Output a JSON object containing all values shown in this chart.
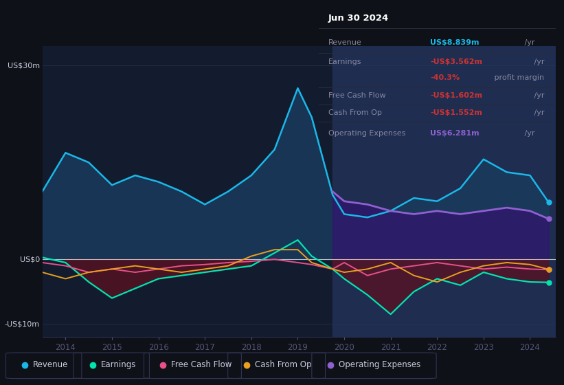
{
  "bg_color": "#0e1117",
  "plot_bg": "#131c2e",
  "highlight_bg": "#1a2744",
  "years": [
    2013.5,
    2014.0,
    2014.5,
    2015.0,
    2015.5,
    2016.0,
    2016.5,
    2017.0,
    2017.5,
    2018.0,
    2018.5,
    2019.0,
    2019.3,
    2019.75,
    2020.0,
    2020.5,
    2021.0,
    2021.5,
    2022.0,
    2022.5,
    2023.0,
    2023.5,
    2024.0,
    2024.4
  ],
  "revenue": [
    10.5,
    16.5,
    15.0,
    11.5,
    13.0,
    12.0,
    10.5,
    8.5,
    10.5,
    13.0,
    17.0,
    26.5,
    22.0,
    10.0,
    7.0,
    6.5,
    7.5,
    9.5,
    9.0,
    11.0,
    15.5,
    13.5,
    13.0,
    8.839
  ],
  "earnings": [
    0.3,
    -0.5,
    -3.5,
    -6.0,
    -4.5,
    -3.0,
    -2.5,
    -2.0,
    -1.5,
    -1.0,
    1.0,
    3.0,
    0.5,
    -1.5,
    -3.0,
    -5.5,
    -8.5,
    -5.0,
    -3.0,
    -4.0,
    -2.0,
    -3.0,
    -3.5,
    -3.562
  ],
  "free_cash_flow": [
    -0.5,
    -1.0,
    -2.0,
    -1.5,
    -2.0,
    -1.5,
    -1.0,
    -0.8,
    -0.5,
    -0.3,
    0.0,
    -0.5,
    -0.8,
    -1.5,
    -0.5,
    -2.5,
    -1.5,
    -1.0,
    -0.5,
    -1.0,
    -1.5,
    -1.2,
    -1.5,
    -1.602
  ],
  "cash_from_op": [
    -2.0,
    -3.0,
    -2.0,
    -1.5,
    -1.0,
    -1.5,
    -2.0,
    -1.5,
    -1.0,
    0.5,
    1.5,
    1.5,
    -0.5,
    -1.5,
    -2.0,
    -1.5,
    -0.5,
    -2.5,
    -3.5,
    -2.0,
    -1.0,
    -0.5,
    -0.8,
    -1.552
  ],
  "op_expenses_years": [
    2019.75,
    2020.0,
    2020.5,
    2021.0,
    2021.5,
    2022.0,
    2022.5,
    2023.0,
    2023.5,
    2024.0,
    2024.4
  ],
  "op_expenses_vals": [
    10.5,
    9.0,
    8.5,
    7.5,
    7.0,
    7.5,
    7.0,
    7.5,
    8.0,
    7.5,
    6.281
  ],
  "highlight_start": 2019.75,
  "highlight_end": 2024.55,
  "xlim": [
    2013.5,
    2024.55
  ],
  "ylim": [
    -12,
    33
  ],
  "yticks": [
    -10,
    0,
    30
  ],
  "ytick_labels": [
    "-US$10m",
    "US$0",
    "US$30m"
  ],
  "xticks": [
    2014,
    2015,
    2016,
    2017,
    2018,
    2019,
    2020,
    2021,
    2022,
    2023,
    2024
  ],
  "revenue_color": "#1ab8e8",
  "earnings_color": "#00e5b0",
  "fcf_color": "#e8508a",
  "cashop_color": "#e8a020",
  "opex_color": "#9060d0",
  "revenue_fill": "#1a3a5c",
  "earnings_fill_neg": "#5a1020",
  "opex_fill": "#2d1a6a",
  "info_box": {
    "title": "Jun 30 2024",
    "rows": [
      {
        "label": "Revenue",
        "value": "US$8.839m",
        "value_color": "#1ab8e8",
        "suffix": " /yr"
      },
      {
        "label": "Earnings",
        "value": "-US$3.562m",
        "value_color": "#cc3333",
        "suffix": " /yr"
      },
      {
        "label": null,
        "value": "-40.3%",
        "value_color": "#cc3333",
        "suffix": " profit margin"
      },
      {
        "label": "Free Cash Flow",
        "value": "-US$1.602m",
        "value_color": "#cc3333",
        "suffix": " /yr"
      },
      {
        "label": "Cash From Op",
        "value": "-US$1.552m",
        "value_color": "#cc3333",
        "suffix": " /yr"
      },
      {
        "label": "Operating Expenses",
        "value": "US$6.281m",
        "value_color": "#9060d0",
        "suffix": " /yr"
      }
    ]
  },
  "legend_items": [
    {
      "label": "Revenue",
      "color": "#1ab8e8"
    },
    {
      "label": "Earnings",
      "color": "#00e5b0"
    },
    {
      "label": "Free Cash Flow",
      "color": "#e8508a"
    },
    {
      "label": "Cash From Op",
      "color": "#e8a020"
    },
    {
      "label": "Operating Expenses",
      "color": "#9060d0"
    }
  ]
}
